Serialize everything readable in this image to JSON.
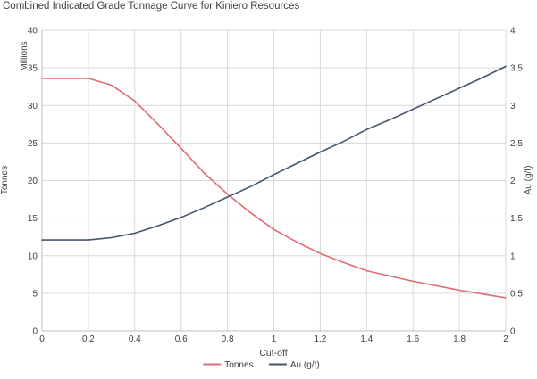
{
  "chart_data": {
    "type": "line",
    "title": "Combined Indicated Grade Tonnage Curve for Kiniero Resources",
    "xlabel": "Cut-off",
    "ylabel_left": "Tonnes",
    "ylabel_left_units": "Millions",
    "ylabel_right": "Au (g/t)",
    "xlim": [
      0,
      2
    ],
    "ylim_left": [
      0,
      40
    ],
    "ylim_right": [
      0,
      4
    ],
    "grid": true,
    "legend": "bottom",
    "x_ticks": [
      "0",
      "0.2",
      "0.4",
      "0.6",
      "0.8",
      "1",
      "1.2",
      "1.4",
      "1.6",
      "1.8",
      "2"
    ],
    "y_left_ticks": [
      "0",
      "5",
      "10",
      "15",
      "20",
      "25",
      "30",
      "35",
      "40"
    ],
    "y_right_ticks": [
      "0",
      "0.5",
      "1",
      "1.5",
      "2",
      "2.5",
      "3",
      "3.5",
      "4"
    ],
    "x": [
      0,
      0.1,
      0.2,
      0.3,
      0.4,
      0.5,
      0.6,
      0.7,
      0.8,
      0.9,
      1.0,
      1.1,
      1.2,
      1.3,
      1.4,
      1.5,
      1.6,
      1.7,
      1.8,
      1.9,
      2.0
    ],
    "series": [
      {
        "name": "Tonnes",
        "axis": "left",
        "color": "#e06b73",
        "values": [
          33.6,
          33.6,
          33.6,
          32.7,
          30.6,
          27.5,
          24.3,
          21.0,
          18.2,
          15.7,
          13.5,
          11.8,
          10.3,
          9.1,
          8.0,
          7.3,
          6.6,
          6.0,
          5.4,
          4.9,
          4.4
        ]
      },
      {
        "name": "Au (g/t)",
        "axis": "right",
        "color": "#44546a",
        "values": [
          1.21,
          1.21,
          1.21,
          1.24,
          1.3,
          1.4,
          1.51,
          1.64,
          1.78,
          1.92,
          2.08,
          2.23,
          2.38,
          2.52,
          2.68,
          2.81,
          2.95,
          3.09,
          3.23,
          3.37,
          3.52
        ]
      }
    ]
  }
}
